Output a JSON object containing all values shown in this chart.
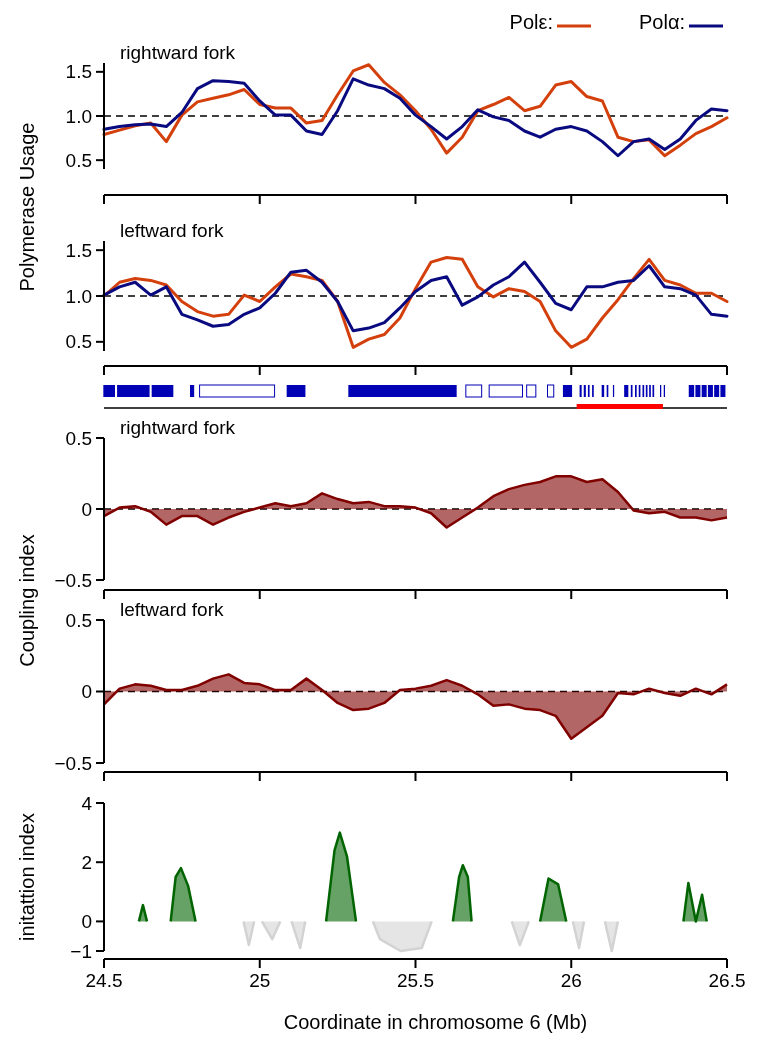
{
  "chart_data": [
    {
      "type": "line",
      "title": "rightward fork",
      "ylabel": "Polymerase Usage",
      "legend": "top right",
      "tick_labels": "y",
      "xlim": [
        24.5,
        26.5
      ],
      "xticks": [
        24.5,
        25,
        25.5,
        26,
        26.5
      ],
      "ylim": [
        0.4,
        1.6
      ],
      "yticks": [
        0.5,
        {
          "value": 1,
          "label": "1.0"
        },
        1.5
      ],
      "ref_lines": [
        {
          "axis": "y",
          "value": 1,
          "line_style": "dashed",
          "color": "#000000"
        }
      ],
      "x": [
        24.5,
        24.55,
        24.6,
        24.65,
        24.7,
        24.75,
        24.8,
        24.85,
        24.9,
        24.95,
        25,
        25.05,
        25.1,
        25.15,
        25.2,
        25.25,
        25.3,
        25.35,
        25.4,
        25.45,
        25.5,
        25.55,
        25.6,
        25.65,
        25.7,
        25.75,
        25.8,
        25.85,
        25.9,
        25.95,
        26,
        26.05,
        26.1,
        26.15,
        26.2,
        26.25,
        26.3,
        26.35,
        26.4,
        26.45,
        26.5
      ],
      "series": [
        {
          "name": "Polε:",
          "color": "#d4400c",
          "values": [
            0.79,
            0.84,
            0.89,
            0.92,
            0.71,
            1.01,
            1.16,
            1.2,
            1.24,
            1.3,
            1.13,
            1.09,
            1.09,
            0.92,
            0.95,
            1.24,
            1.51,
            1.58,
            1.38,
            1.24,
            1.06,
            0.85,
            0.58,
            0.76,
            1.06,
            1.13,
            1.21,
            1.06,
            1.11,
            1.35,
            1.39,
            1.22,
            1.17,
            0.76,
            0.71,
            0.73,
            0.55,
            0.67,
            0.8,
            0.88,
            0.98
          ]
        },
        {
          "name": "Polα:",
          "color": "#0a0a80",
          "values": [
            0.85,
            0.88,
            0.9,
            0.91,
            0.88,
            1.04,
            1.31,
            1.4,
            1.39,
            1.37,
            1.17,
            1.01,
            1.01,
            0.83,
            0.79,
            1.06,
            1.42,
            1.35,
            1.31,
            1.2,
            1.01,
            0.88,
            0.74,
            0.88,
            1.07,
            0.99,
            0.95,
            0.83,
            0.76,
            0.85,
            0.88,
            0.83,
            0.71,
            0.55,
            0.71,
            0.74,
            0.62,
            0.74,
            0.95,
            1.08,
            1.06
          ]
        }
      ]
    },
    {
      "type": "line",
      "title": "leftward fork",
      "tick_labels": "y",
      "xlim": [
        24.5,
        26.5
      ],
      "xticks": [
        24.5,
        25,
        25.5,
        26,
        26.5
      ],
      "ylim": [
        0.4,
        1.6
      ],
      "yticks": [
        0.5,
        {
          "value": 1,
          "label": "1.0"
        },
        1.5
      ],
      "ref_lines": [
        {
          "axis": "y",
          "value": 1,
          "line_style": "dashed",
          "color": "#000000"
        }
      ],
      "x": [
        24.5,
        24.55,
        24.6,
        24.65,
        24.7,
        24.75,
        24.8,
        24.85,
        24.9,
        24.95,
        25,
        25.05,
        25.1,
        25.15,
        25.2,
        25.25,
        25.3,
        25.35,
        25.4,
        25.45,
        25.5,
        25.55,
        25.6,
        25.65,
        25.7,
        25.75,
        25.8,
        25.85,
        25.9,
        25.95,
        26,
        26.05,
        26.1,
        26.15,
        26.2,
        26.25,
        26.3,
        26.35,
        26.4,
        26.45,
        26.5
      ],
      "series": [
        {
          "color": "#d4400c",
          "values": [
            1.0,
            1.15,
            1.19,
            1.17,
            1.12,
            0.94,
            0.83,
            0.78,
            0.8,
            1.01,
            0.94,
            1.1,
            1.24,
            1.21,
            1.17,
            0.94,
            0.44,
            0.53,
            0.58,
            0.76,
            1.08,
            1.37,
            1.42,
            1.4,
            1.1,
            0.99,
            1.08,
            1.05,
            0.94,
            0.62,
            0.44,
            0.53,
            0.76,
            0.96,
            1.19,
            1.4,
            1.17,
            1.12,
            1.03,
            1.03,
            0.94
          ]
        },
        {
          "color": "#0a0a80",
          "values": [
            1.01,
            1.1,
            1.15,
            1.01,
            1.1,
            0.8,
            0.74,
            0.67,
            0.69,
            0.8,
            0.87,
            1.03,
            1.26,
            1.28,
            1.15,
            0.94,
            0.62,
            0.65,
            0.71,
            0.87,
            1.05,
            1.17,
            1.21,
            0.9,
            0.99,
            1.12,
            1.21,
            1.37,
            1.15,
            0.92,
            0.85,
            1.1,
            1.1,
            1.15,
            1.17,
            1.33,
            1.1,
            1.08,
            1.01,
            0.8,
            0.78
          ]
        }
      ]
    },
    {
      "type": "area",
      "title": "rightward fork",
      "ylabel": "Coupling index",
      "tick_labels": "y",
      "xlim": [
        24.5,
        26.5
      ],
      "xticks": [
        24.5,
        25,
        25.5,
        26,
        26.5
      ],
      "ylim": [
        -0.5,
        0.5
      ],
      "yticks": [
        {
          "value": -0.5,
          "label": "−0.5"
        },
        0,
        0.5
      ],
      "ref_lines": [
        {
          "axis": "y",
          "value": 0,
          "line_style": "dashed",
          "color": "#000000"
        }
      ],
      "x": [
        24.5,
        24.55,
        24.6,
        24.65,
        24.7,
        24.75,
        24.8,
        24.85,
        24.9,
        24.95,
        25,
        25.05,
        25.1,
        25.15,
        25.2,
        25.25,
        25.3,
        25.35,
        25.4,
        25.45,
        25.5,
        25.55,
        25.6,
        25.65,
        25.7,
        25.75,
        25.8,
        25.85,
        25.9,
        25.95,
        26,
        26.05,
        26.1,
        26.15,
        26.2,
        26.25,
        26.3,
        26.35,
        26.4,
        26.45,
        26.5
      ],
      "series": [
        {
          "color": "#800000",
          "values": [
            -0.05,
            0.01,
            0.02,
            -0.02,
            -0.11,
            -0.05,
            -0.05,
            -0.11,
            -0.06,
            -0.02,
            0.01,
            0.04,
            0.02,
            0.04,
            0.11,
            0.07,
            0.04,
            0.05,
            0.02,
            0.02,
            0.01,
            -0.03,
            -0.13,
            -0.06,
            0.01,
            0.09,
            0.14,
            0.17,
            0.19,
            0.23,
            0.23,
            0.19,
            0.21,
            0.12,
            -0.01,
            -0.03,
            -0.02,
            -0.06,
            -0.06,
            -0.08,
            -0.06
          ]
        }
      ]
    },
    {
      "type": "area",
      "title": "leftward fork",
      "tick_labels": "y",
      "xlim": [
        24.5,
        26.5
      ],
      "xticks": [
        24.5,
        25,
        25.5,
        26,
        26.5
      ],
      "ylim": [
        -0.5,
        0.5
      ],
      "yticks": [
        {
          "value": -0.5,
          "label": "−0.5"
        },
        0,
        0.5
      ],
      "ref_lines": [
        {
          "axis": "y",
          "value": 0,
          "line_style": "dashed",
          "color": "#000000"
        }
      ],
      "x": [
        24.5,
        24.55,
        24.6,
        24.65,
        24.7,
        24.75,
        24.8,
        24.85,
        24.9,
        24.95,
        25,
        25.05,
        25.1,
        25.15,
        25.2,
        25.25,
        25.3,
        25.35,
        25.4,
        25.45,
        25.5,
        25.55,
        25.6,
        25.65,
        25.7,
        25.75,
        25.8,
        25.85,
        25.9,
        25.95,
        26,
        26.05,
        26.1,
        26.15,
        26.2,
        26.25,
        26.3,
        26.35,
        26.4,
        26.45,
        26.5
      ],
      "series": [
        {
          "color": "#800000",
          "values": [
            -0.09,
            0.02,
            0.05,
            0.04,
            0.01,
            0.01,
            0.04,
            0.09,
            0.12,
            0.06,
            0.05,
            0.01,
            0.01,
            0.09,
            0.01,
            -0.08,
            -0.13,
            -0.12,
            -0.08,
            0.01,
            0.02,
            0.04,
            0.08,
            0.04,
            -0.02,
            -0.1,
            -0.09,
            -0.12,
            -0.13,
            -0.17,
            -0.33,
            -0.25,
            -0.17,
            -0.01,
            -0.02,
            0.02,
            -0.01,
            -0.03,
            0.02,
            -0.02,
            0.05
          ]
        }
      ]
    },
    {
      "type": "area",
      "ylabel": "initattion index",
      "xlabel": "Coordinate in chromosome 6 (Mb)",
      "xlim": [
        24.5,
        26.5
      ],
      "xticks": [
        24.5,
        25,
        25.5,
        26,
        26.5
      ],
      "ylim": [
        -1,
        4
      ],
      "yticks": [
        {
          "value": -1,
          "label": "−1"
        },
        0,
        2,
        4
      ],
      "series": [
        {
          "color": "#006400",
          "x": [
            24.612,
            24.625,
            24.638,
            24.714,
            24.73,
            24.747,
            24.77,
            24.794,
            25.213,
            25.24,
            25.257,
            25.28,
            25.309,
            25.62,
            25.64,
            25.652,
            25.668,
            25.68,
            25.9,
            25.927,
            25.958,
            25.984,
            26.36,
            26.376,
            26.4,
            26.42,
            26.435
          ],
          "values": [
            0,
            0.55,
            0,
            0,
            1.5,
            1.8,
            1.2,
            0,
            0,
            2.4,
            3.0,
            2.2,
            0,
            0,
            1.5,
            1.9,
            1.5,
            0,
            0,
            1.45,
            1.25,
            0,
            0,
            1.3,
            0,
            0.9,
            0
          ]
        },
        {
          "color": "#d3d3d3",
          "x": [
            24.948,
            24.965,
            24.982,
            25.007,
            25.04,
            25.066,
            25.102,
            25.13,
            25.146,
            25.363,
            25.386,
            25.452,
            25.52,
            25.552,
            25.809,
            25.835,
            25.864,
            26.005,
            26.025,
            26.041,
            26.108,
            26.13,
            26.15
          ],
          "values": [
            0,
            -0.8,
            0,
            0,
            -0.6,
            0,
            0,
            -0.9,
            0,
            0,
            -0.6,
            -1.0,
            -0.9,
            0,
            0,
            -0.8,
            0,
            0,
            -0.9,
            0,
            0,
            -1.0,
            0
          ]
        }
      ]
    }
  ]
}
